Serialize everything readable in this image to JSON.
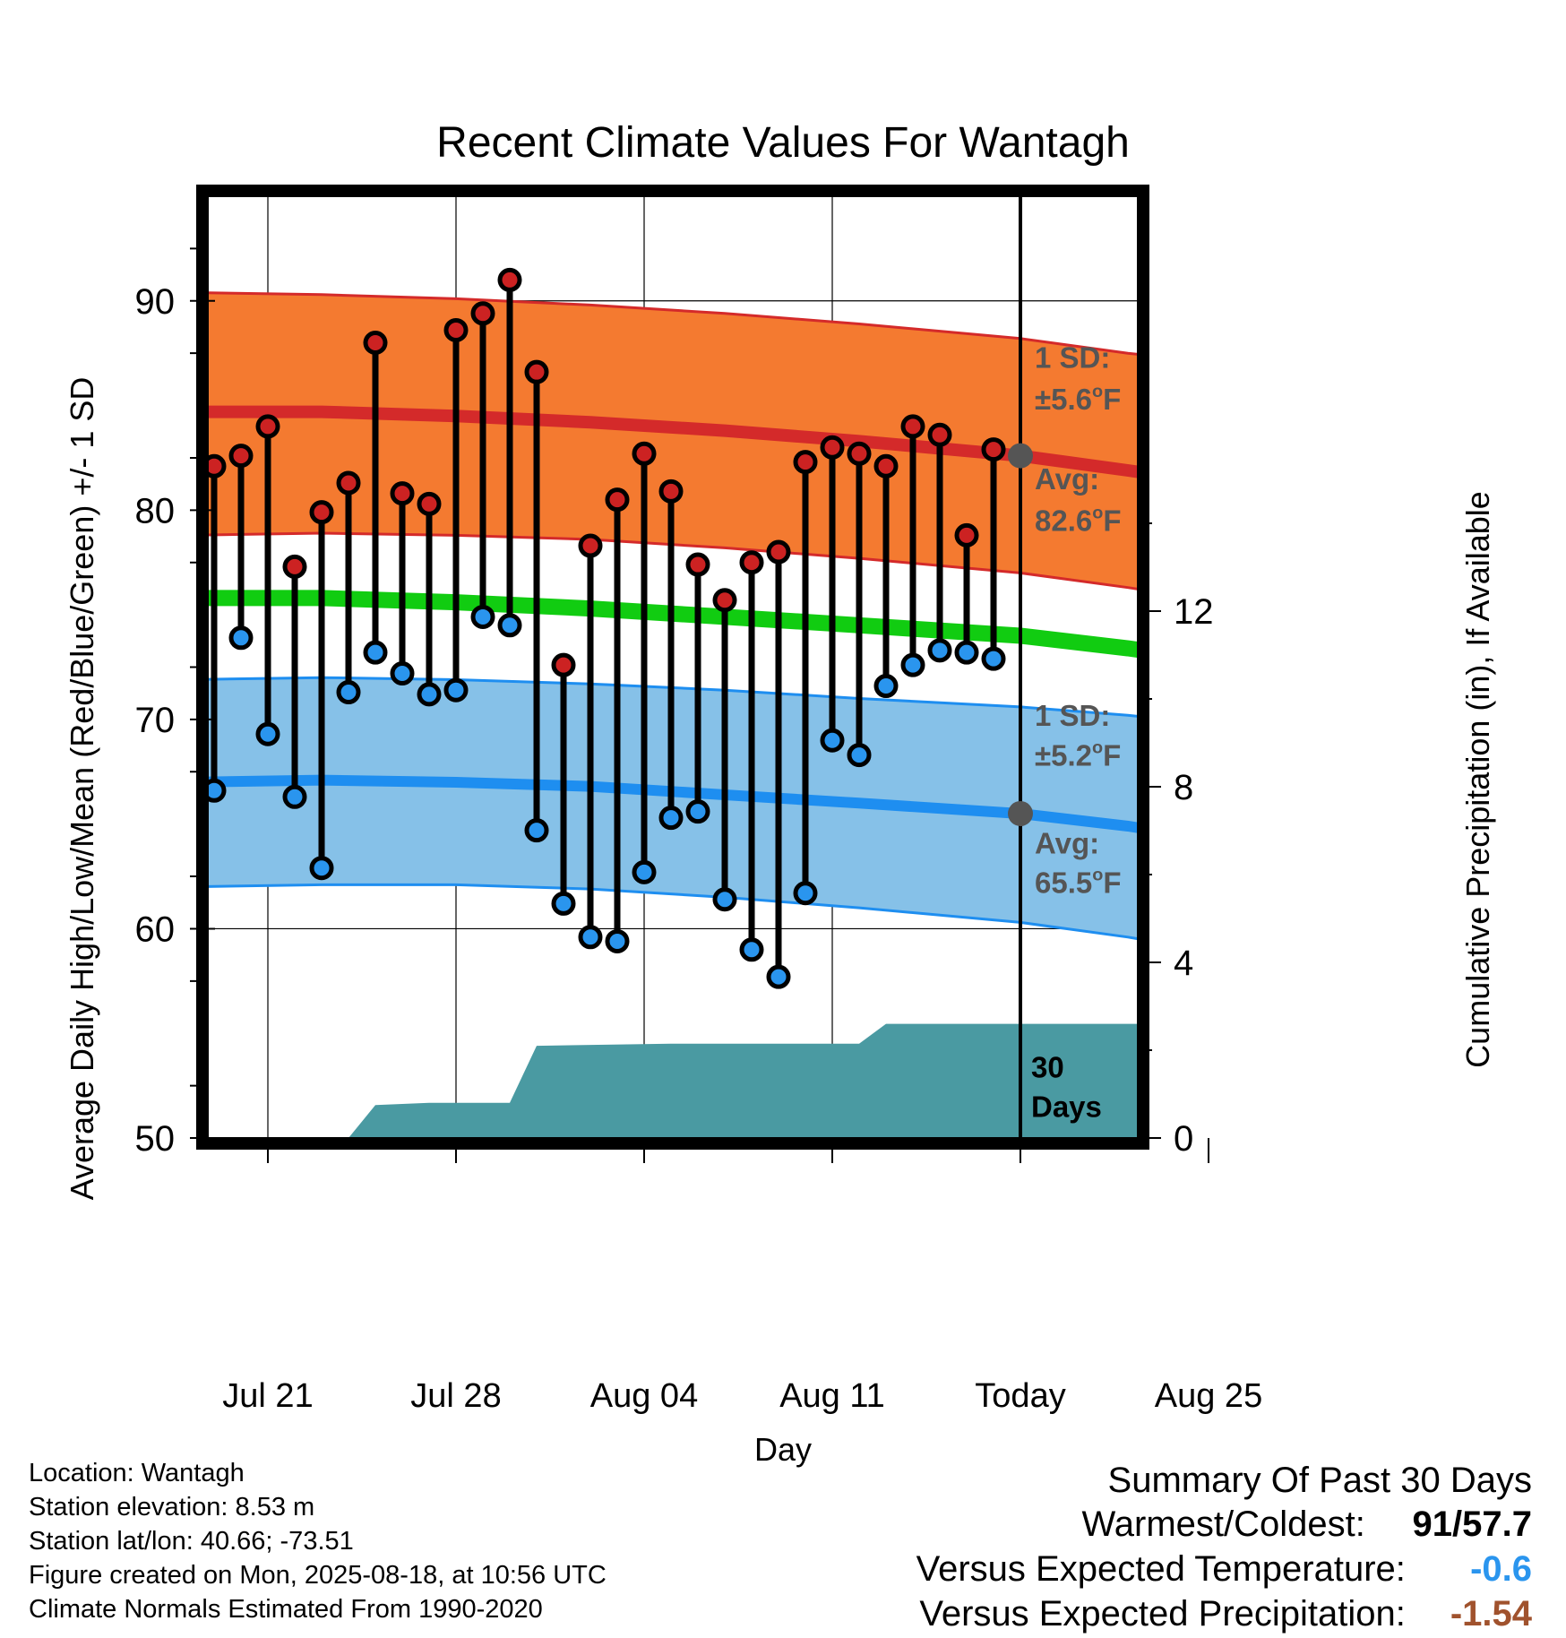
{
  "chart_data": {
    "type": "line",
    "title": "Recent Climate Values For Wantagh",
    "xlabel": "Day",
    "ylabel": "Average Daily High/Low/Mean (Red/Blue/Green) +/- 1 SD",
    "y2label": "Cumulative Precipitation (in), If Available",
    "x_tick_labels": [
      "Jul 21",
      "Jul 28",
      "Aug 04",
      "Aug 11",
      "Today",
      "Aug 25"
    ],
    "x_tick_dates": [
      "2025-07-21",
      "2025-07-28",
      "2025-08-04",
      "2025-08-11",
      "2025-08-18",
      "2025-08-25"
    ],
    "today": "2025-08-18",
    "xlim": [
      "2025-07-18",
      "2025-08-27"
    ],
    "ylim": [
      50,
      95
    ],
    "y_ticks": [
      50,
      60,
      70,
      80,
      90
    ],
    "y2lim": [
      0,
      18
    ],
    "y2_ticks": [
      0,
      4,
      8,
      12
    ],
    "grid": true,
    "dates": [
      "2025-07-19",
      "2025-07-20",
      "2025-07-21",
      "2025-07-22",
      "2025-07-23",
      "2025-07-24",
      "2025-07-25",
      "2025-07-26",
      "2025-07-27",
      "2025-07-28",
      "2025-07-29",
      "2025-07-30",
      "2025-07-31",
      "2025-08-01",
      "2025-08-02",
      "2025-08-03",
      "2025-08-04",
      "2025-08-05",
      "2025-08-06",
      "2025-08-07",
      "2025-08-08",
      "2025-08-09",
      "2025-08-10",
      "2025-08-11",
      "2025-08-12",
      "2025-08-13",
      "2025-08-14",
      "2025-08-15",
      "2025-08-16",
      "2025-08-17"
    ],
    "daily_high": [
      82.1,
      82.6,
      84.0,
      77.3,
      79.9,
      81.3,
      88.0,
      80.8,
      80.3,
      88.6,
      89.4,
      91.0,
      86.6,
      72.6,
      78.3,
      80.5,
      82.7,
      80.9,
      77.4,
      75.7,
      77.5,
      78.0,
      82.3,
      83.0,
      82.7,
      82.1,
      84.0,
      83.6,
      78.8,
      82.9
    ],
    "daily_low": [
      66.6,
      73.9,
      69.3,
      66.3,
      62.9,
      71.3,
      73.2,
      72.2,
      71.2,
      71.4,
      74.9,
      74.5,
      64.7,
      61.2,
      59.6,
      59.4,
      62.7,
      65.3,
      65.6,
      61.4,
      59.0,
      57.7,
      61.7,
      69.0,
      68.3,
      71.6,
      72.6,
      73.3,
      73.2,
      72.9
    ],
    "normals": {
      "dates": [
        "2025-07-18",
        "2025-07-23",
        "2025-07-28",
        "2025-08-02",
        "2025-08-07",
        "2025-08-12",
        "2025-08-18",
        "2025-08-22",
        "2025-08-27"
      ],
      "avg_high": [
        84.7,
        84.7,
        84.5,
        84.2,
        83.8,
        83.3,
        82.6,
        81.9,
        81.0
      ],
      "high_upper": [
        90.4,
        90.3,
        90.1,
        89.8,
        89.4,
        88.9,
        88.2,
        87.5,
        86.8
      ],
      "high_lower": [
        78.8,
        78.9,
        78.8,
        78.6,
        78.2,
        77.7,
        77.0,
        76.3,
        75.3
      ],
      "avg_mean": [
        75.8,
        75.8,
        75.6,
        75.3,
        74.9,
        74.5,
        74.0,
        73.4,
        72.5
      ],
      "avg_low": [
        67.0,
        67.1,
        67.0,
        66.8,
        66.4,
        66.0,
        65.5,
        64.9,
        63.9
      ],
      "low_upper": [
        71.9,
        72.0,
        71.9,
        71.7,
        71.4,
        71.0,
        70.6,
        70.2,
        69.5
      ],
      "low_lower": [
        62.0,
        62.1,
        62.1,
        61.9,
        61.5,
        61.0,
        60.3,
        59.6,
        58.5
      ]
    },
    "precipitation": {
      "dates": [
        "2025-07-18",
        "2025-07-24",
        "2025-07-25",
        "2025-07-27",
        "2025-07-30",
        "2025-07-31",
        "2025-08-05",
        "2025-08-12",
        "2025-08-13",
        "2025-08-27"
      ],
      "values": [
        0,
        0,
        0.75,
        0.8,
        0.8,
        2.1,
        2.15,
        2.15,
        2.6,
        2.6
      ]
    },
    "annotations": {
      "high_sd_label": "1 SD:",
      "high_sd_value": "±5.6°F",
      "high_avg_label": "Avg:",
      "high_avg_value": "82.6°F",
      "low_sd_label": "1 SD:",
      "low_sd_value": "±5.2°F",
      "low_avg_label": "Avg:",
      "low_avg_value": "65.5°F",
      "days_number": "30",
      "days_word": "Days"
    },
    "colors": {
      "high_band": "#f47a30",
      "high_line": "#d42a2a",
      "mean_line": "#11cc11",
      "low_band": "#86c1e8",
      "low_line": "#1e8ef0",
      "precip": "#4a9aa2",
      "high_dot": "#cc2222",
      "low_dot": "#2a95ee",
      "annotation": "#555555"
    }
  },
  "info": {
    "location": "Location: Wantagh",
    "elevation": "Station elevation: 8.53 m",
    "latlon": "Station lat/lon: 40.66; -73.51",
    "created": "Figure created on Mon, 2025-08-18, at 10:56 UTC",
    "normals": "Climate Normals Estimated From 1990-2020"
  },
  "summary": {
    "title": "Summary Of Past 30 Days",
    "warmest_label": "Warmest/Coldest:",
    "warmest_value": "91",
    "slash": "/",
    "coldest_value": "57.7",
    "temp_label": "Versus Expected Temperature:",
    "temp_value": "-0.6",
    "temp_color": "#2a95ee",
    "precip_label": "Versus Expected Precipitation:",
    "precip_value": "-1.54",
    "precip_color": "#a0522d"
  }
}
